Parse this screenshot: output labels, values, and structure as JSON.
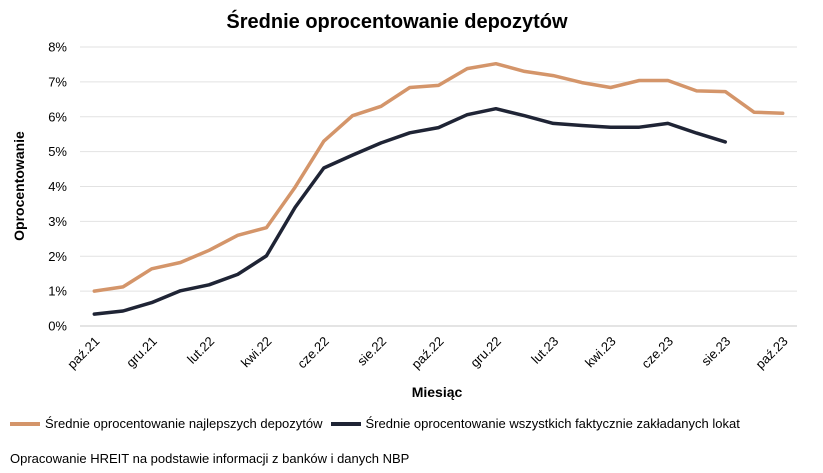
{
  "chart_data": {
    "type": "line",
    "title": "Średnie oprocentowanie depozytów",
    "xlabel": "Miesiąc",
    "ylabel": "Oprocentowanie",
    "ylim": [
      0,
      8
    ],
    "ytick_labels": [
      "0%",
      "1%",
      "2%",
      "3%",
      "4%",
      "5%",
      "6%",
      "7%",
      "8%"
    ],
    "x": [
      "paź.21",
      "lis.21",
      "gru.21",
      "sty.22",
      "lut.22",
      "mar.22",
      "kwi.22",
      "maj.22",
      "cze.22",
      "lip.22",
      "sie.22",
      "wrz.22",
      "paź.22",
      "lis.22",
      "gru.22",
      "sty.23",
      "lut.23",
      "mar.23",
      "kwi.23",
      "maj.23",
      "cze.23",
      "lip.23",
      "sie.23",
      "wrz.23",
      "paź.23"
    ],
    "xtick_labels": [
      "paź.21",
      "gru.21",
      "lut.22",
      "kwi.22",
      "cze.22",
      "sie.22",
      "paź.22",
      "gru.22",
      "lut.23",
      "kwi.23",
      "cze.23",
      "sie.23",
      "paź.23"
    ],
    "grid": true,
    "legend_position": "bottom",
    "series": [
      {
        "name": "Średnie oprocentowanie najlepszych depozytów",
        "color": "#D4956A",
        "values": [
          1.0,
          1.12,
          1.64,
          1.82,
          2.17,
          2.6,
          2.82,
          3.98,
          5.3,
          6.03,
          6.3,
          6.84,
          6.9,
          7.38,
          7.52,
          7.3,
          7.18,
          6.98,
          6.84,
          7.04,
          7.04,
          6.74,
          6.72,
          6.13,
          6.1
        ]
      },
      {
        "name": "Średnie oprocentowanie wszystkich faktycznie zakładanych lokat",
        "color": "#1F2435",
        "values": [
          0.34,
          0.43,
          0.67,
          1.01,
          1.18,
          1.48,
          2.01,
          3.4,
          4.53,
          4.9,
          5.25,
          5.54,
          5.69,
          6.06,
          6.23,
          6.03,
          5.81,
          5.75,
          5.7,
          5.7,
          5.81,
          5.53,
          5.28,
          null,
          null
        ]
      }
    ]
  },
  "source": "Opracowanie HREIT na podstawie informacji z banków i danych NBP"
}
